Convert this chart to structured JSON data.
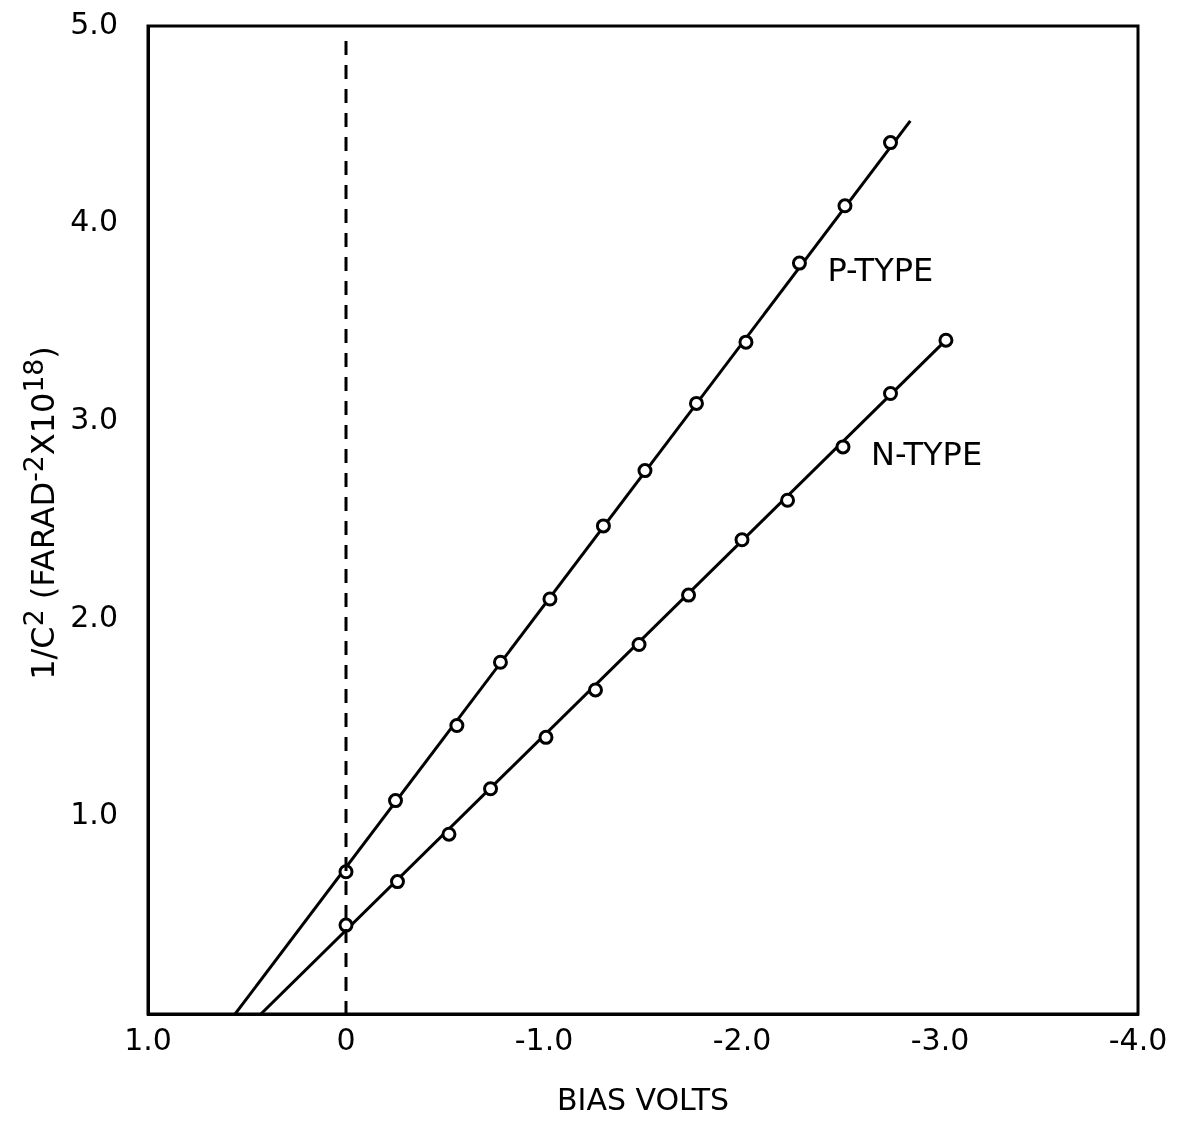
{
  "chart_data": {
    "type": "scatter",
    "xlabel": "BIAS VOLTS",
    "ylabel": "1/C$^{2}$ (FARAD$^{-2}$X10$^{18}$)",
    "xlim": [
      1.0,
      -4.0
    ],
    "xticks": [
      {
        "value": 1,
        "label": "1.0"
      },
      0,
      {
        "value": -1,
        "label": "-1.0"
      },
      {
        "value": -2,
        "label": "-2.0"
      },
      {
        "value": -3,
        "label": "-3.0"
      },
      {
        "value": -4,
        "label": "-4.0"
      }
    ],
    "ylim": [
      0,
      5.0
    ],
    "yticks": [
      {
        "value": 1,
        "label": "1.0"
      },
      {
        "value": 2,
        "label": "2.0"
      },
      {
        "value": 3,
        "label": "3.0"
      },
      {
        "value": 4,
        "label": "4.0"
      },
      {
        "value": 5,
        "label": "5.0"
      }
    ],
    "grid": false,
    "legend": false,
    "marker": "circle",
    "ref_lines": [
      {
        "axis": "x",
        "value": 0,
        "line_style": "dashed",
        "color": "#000000"
      }
    ],
    "series": [
      {
        "name": "P-TYPE",
        "color": "#000000",
        "x": [
          0.0,
          -0.25,
          -0.56,
          -0.78,
          -1.03,
          -1.3,
          -1.51,
          -1.77,
          -2.02,
          -2.29,
          -2.52,
          -2.75
        ],
        "values": [
          0.72,
          1.08,
          1.46,
          1.78,
          2.1,
          2.47,
          2.75,
          3.09,
          3.4,
          3.8,
          4.09,
          4.41
        ]
      },
      {
        "name": "N-TYPE",
        "color": "#000000",
        "x": [
          0.0,
          -0.26,
          -0.52,
          -0.73,
          -1.01,
          -1.26,
          -1.48,
          -1.73,
          -2.0,
          -2.23,
          -2.51,
          -2.75,
          -3.03
        ],
        "values": [
          0.45,
          0.67,
          0.91,
          1.14,
          1.4,
          1.64,
          1.87,
          2.12,
          2.4,
          2.6,
          2.87,
          3.14,
          3.41
        ]
      },
      {
        "type": "line",
        "color": "#000000",
        "marker": "none",
        "x": [
          0.56,
          -2.85
        ],
        "values": [
          0,
          4.52
        ]
      },
      {
        "type": "line",
        "color": "#000000",
        "marker": "none",
        "x": [
          0.43,
          -3.03
        ],
        "values": [
          0,
          3.41
        ]
      }
    ]
  }
}
